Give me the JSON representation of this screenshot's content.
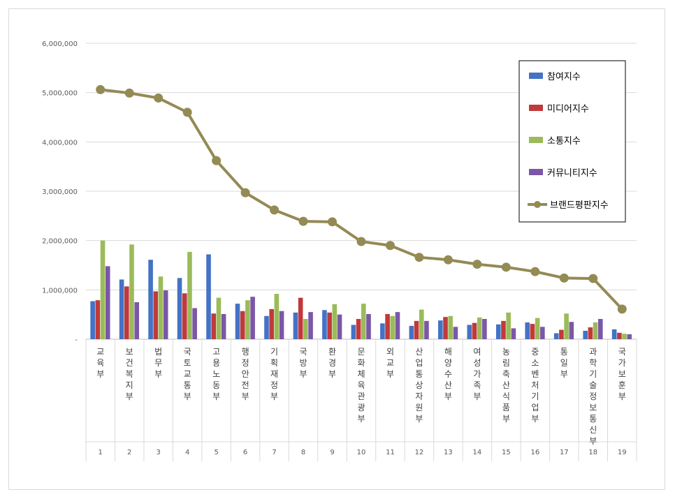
{
  "chart_data": {
    "type": "bar",
    "title": "",
    "xlabel": "",
    "ylabel": "",
    "ylim": [
      0,
      6000000
    ],
    "yticks": [
      0,
      1000000,
      2000000,
      3000000,
      4000000,
      5000000,
      6000000
    ],
    "ytick_labels": [
      "-",
      "1,000,000",
      "2,000,000",
      "3,000,000",
      "4,000,000",
      "5,000,000",
      "6,000,000"
    ],
    "categories": [
      "교육부",
      "보건복지부",
      "법무부",
      "국토교통부",
      "고용노동부",
      "행정안전부",
      "기획재정부",
      "국방부",
      "환경부",
      "문화체육관광부",
      "외교부",
      "산업통상자원부",
      "해양수산부",
      "여성가족부",
      "농림축산식품부",
      "중소벤처기업부",
      "통일부",
      "과학기술정보통신부",
      "국가보훈부"
    ],
    "ranks": [
      "1",
      "2",
      "3",
      "4",
      "5",
      "6",
      "7",
      "8",
      "9",
      "10",
      "11",
      "12",
      "13",
      "14",
      "15",
      "16",
      "17",
      "18",
      "19"
    ],
    "legend_position": "top-right",
    "series": [
      {
        "name": "참여지수",
        "type": "bar",
        "color": "#4472c4",
        "values": [
          770000,
          1210000,
          1610000,
          1240000,
          1720000,
          720000,
          470000,
          540000,
          590000,
          290000,
          320000,
          270000,
          380000,
          290000,
          300000,
          340000,
          120000,
          170000,
          200000
        ]
      },
      {
        "name": "미디어지수",
        "type": "bar",
        "color": "#c0393b",
        "values": [
          790000,
          1070000,
          970000,
          930000,
          520000,
          570000,
          610000,
          840000,
          540000,
          410000,
          510000,
          370000,
          450000,
          330000,
          370000,
          310000,
          190000,
          240000,
          130000
        ]
      },
      {
        "name": "소통지수",
        "type": "bar",
        "color": "#9bbb59",
        "values": [
          2000000,
          1920000,
          1270000,
          1770000,
          840000,
          790000,
          920000,
          410000,
          710000,
          720000,
          470000,
          600000,
          470000,
          440000,
          540000,
          430000,
          520000,
          340000,
          110000
        ]
      },
      {
        "name": "커뮤니티지수",
        "type": "bar",
        "color": "#7b57a8",
        "values": [
          1480000,
          750000,
          990000,
          630000,
          510000,
          860000,
          570000,
          550000,
          500000,
          510000,
          550000,
          370000,
          250000,
          410000,
          220000,
          250000,
          350000,
          410000,
          100000
        ]
      },
      {
        "name": "브랜드평판지수",
        "type": "line",
        "color": "#948a54",
        "values": [
          5060000,
          4990000,
          4890000,
          4600000,
          3620000,
          2970000,
          2620000,
          2390000,
          2380000,
          1980000,
          1900000,
          1660000,
          1610000,
          1520000,
          1460000,
          1370000,
          1240000,
          1230000,
          610000
        ]
      }
    ]
  }
}
